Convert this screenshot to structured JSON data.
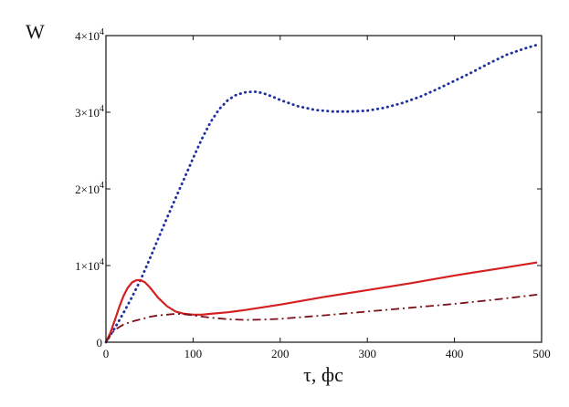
{
  "chart_data": {
    "type": "line",
    "xlabel": "τ, фс",
    "ylabel": "W",
    "xlim": [
      0,
      500
    ],
    "ylim": [
      0,
      40000
    ],
    "xticks": [
      0,
      100,
      200,
      300,
      400,
      500
    ],
    "xtick_labels": [
      "0",
      "100",
      "200",
      "300",
      "400",
      "500"
    ],
    "yticks": [
      0,
      10000,
      20000,
      30000,
      40000
    ],
    "ytick_labels": [
      "0",
      "1×10",
      "2×10",
      "3×10",
      "4×10"
    ],
    "ytick_exponents": [
      "",
      "4",
      "4",
      "4",
      "4"
    ],
    "grid": false,
    "legend": "none",
    "series": [
      {
        "style": "dotted",
        "color": "#1f2fa0",
        "x": [
          0,
          10,
          20,
          30,
          40,
          50,
          60,
          70,
          80,
          90,
          100,
          110,
          120,
          130,
          140,
          150,
          160,
          170,
          180,
          190,
          200,
          220,
          240,
          260,
          280,
          300,
          320,
          340,
          360,
          380,
          400,
          420,
          440,
          460,
          480,
          495
        ],
        "y": [
          0,
          1800,
          3800,
          5900,
          8200,
          10800,
          13500,
          16200,
          18800,
          21400,
          24000,
          26500,
          28700,
          30400,
          31600,
          32300,
          32600,
          32700,
          32500,
          32100,
          31600,
          30800,
          30300,
          30100,
          30100,
          30200,
          30600,
          31200,
          32000,
          33000,
          34100,
          35200,
          36400,
          37500,
          38300,
          38800
        ]
      },
      {
        "style": "solid",
        "color": "#d42020",
        "x": [
          0,
          5,
          10,
          15,
          20,
          25,
          30,
          35,
          40,
          45,
          50,
          55,
          60,
          70,
          80,
          90,
          100,
          110,
          120,
          140,
          160,
          200,
          250,
          300,
          350,
          400,
          450,
          495
        ],
        "y": [
          0,
          1200,
          2800,
          4500,
          6000,
          7100,
          7800,
          8100,
          8100,
          7800,
          7200,
          6500,
          5800,
          4700,
          4000,
          3700,
          3600,
          3600,
          3700,
          3900,
          4200,
          4900,
          5900,
          6800,
          7700,
          8700,
          9600,
          10400
        ]
      },
      {
        "style": "dash-dot",
        "color": "#7a1218",
        "x": [
          0,
          5,
          10,
          20,
          30,
          40,
          50,
          60,
          70,
          80,
          90,
          100,
          110,
          120,
          140,
          160,
          180,
          200,
          250,
          300,
          350,
          400,
          450,
          495
        ],
        "y": [
          0,
          900,
          1600,
          2300,
          2700,
          3000,
          3300,
          3500,
          3600,
          3700,
          3650,
          3500,
          3350,
          3200,
          3000,
          2900,
          2950,
          3050,
          3500,
          4000,
          4500,
          5000,
          5600,
          6200
        ]
      }
    ]
  }
}
